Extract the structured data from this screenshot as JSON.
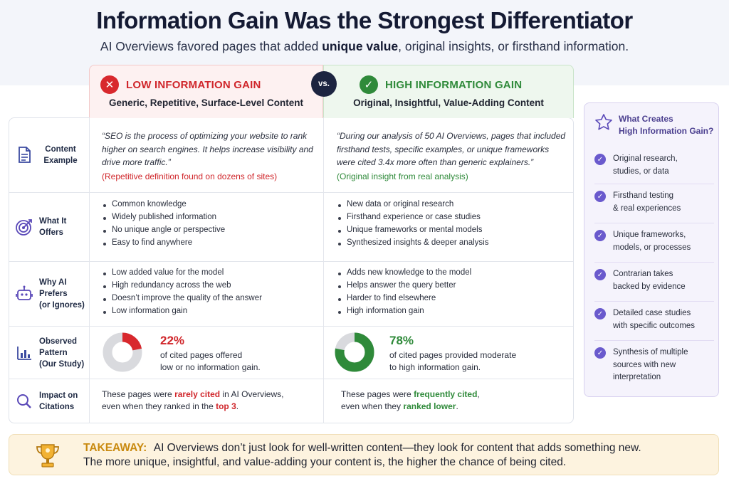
{
  "header": {
    "title": "Information Gain Was the Strongest Differentiator",
    "subtitle_pre": "AI Overviews favored pages that added ",
    "subtitle_bold": "unique value",
    "subtitle_post": ", original insights, or firsthand information."
  },
  "columns": {
    "low": {
      "title": "LOW INFORMATION GAIN",
      "subtitle": "Generic, Repetitive, Surface-Level Content",
      "icon": "x-icon",
      "color": "#d8282d"
    },
    "vs": "vs.",
    "high": {
      "title": "HIGH INFORMATION GAIN",
      "subtitle": "Original, Insightful, Value-Adding Content",
      "icon": "check-icon",
      "color": "#2f8a3a"
    }
  },
  "rows": {
    "content_example": {
      "label": "Content Example",
      "low_quote": "“SEO is the process of optimizing your website to rank higher on search engines. It helps increase visibility and drive more traffic.”",
      "low_note": "(Repetitive definition found on dozens of sites)",
      "high_quote": "“During our analysis of 50 AI Overviews, pages that included firsthand tests, specific examples, or unique frameworks were cited 3.4x more often than generic explainers.”",
      "high_note": "(Original insight from real analysis)"
    },
    "what_it_offers": {
      "label": "What It Offers",
      "low": [
        "Common knowledge",
        "Widely published information",
        "No unique angle or perspective",
        "Easy to find anywhere"
      ],
      "high": [
        "New data or original research",
        "Firsthand experience or case studies",
        "Unique frameworks or mental models",
        "Synthesized insights & deeper analysis"
      ]
    },
    "why_ai": {
      "label_line1": "Why AI Prefers",
      "label_line2": "(or Ignores)",
      "low": [
        "Low added value for the model",
        "High redundancy across the web",
        "Doesn’t improve the quality of the answer",
        "Low information gain"
      ],
      "high": [
        "Adds new knowledge to the model",
        "Helps answer the query better",
        "Harder to find elsewhere",
        "High information gain"
      ]
    },
    "observed": {
      "label_line1": "Observed",
      "label_line2": "Pattern",
      "label_line3": "(Our Study)",
      "low_pct": "22%",
      "low_value": 22,
      "low_desc1": "of cited pages offered",
      "low_desc2": "low or no information gain.",
      "high_pct": "78%",
      "high_value": 78,
      "high_desc1": "of cited pages provided moderate",
      "high_desc2": "to high information gain."
    },
    "impact": {
      "label_line1": "Impact on",
      "label_line2": "Citations",
      "low_pre": "These pages were ",
      "low_bold": "rarely cited",
      "low_mid": " in AI Overviews,",
      "low_line2_pre": "even when they ranked in the ",
      "low_line2_bold": "top 3",
      "low_line2_post": ".",
      "high_pre": "These pages were ",
      "high_bold": "frequently cited",
      "high_mid": ",",
      "high_line2_pre": "even when they ",
      "high_line2_bold": "ranked lower",
      "high_line2_post": "."
    }
  },
  "side_panel": {
    "title_line1": "What Creates",
    "title_line2": "High Information Gain?",
    "items": [
      {
        "l1": "Original research,",
        "l2": "studies, or data"
      },
      {
        "l1": "Firsthand testing",
        "l2": "& real experiences"
      },
      {
        "l1": "Unique frameworks,",
        "l2": "models, or processes"
      },
      {
        "l1": "Contrarian takes",
        "l2": "backed by evidence"
      },
      {
        "l1": "Detailed case studies",
        "l2": "with specific outcomes"
      },
      {
        "l1": "Synthesis of multiple",
        "l2": "sources with new",
        "l3": "interpretation"
      }
    ]
  },
  "takeaway": {
    "label": "TAKEAWAY:",
    "line1": "AI Overviews don’t just look for well-written content—they look for content that adds something new.",
    "line2": "The more unique, insightful, and value-adding your content is, the higher the chance of being cited."
  }
}
